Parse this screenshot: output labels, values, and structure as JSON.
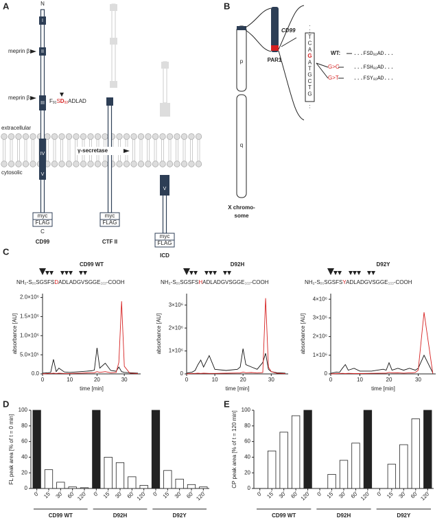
{
  "figure": {
    "panel_labels": [
      "A",
      "B",
      "C",
      "D",
      "E"
    ]
  },
  "diagram_a": {
    "n_term": "N",
    "domains": [
      "I",
      "II",
      "III",
      "IV",
      "V"
    ],
    "meprin": [
      "meprin β",
      "meprin β"
    ],
    "cleavage_seq": [
      "F",
      "91",
      "S",
      "D",
      "92",
      "ADLAD"
    ],
    "extracellular": "extracellular",
    "cytosolic": "cytosolic",
    "gamma": "γ-secretase",
    "tags": [
      "myc",
      "FLAG"
    ],
    "c_term": "C",
    "names": [
      "CD99",
      "CTF II",
      "ICD"
    ]
  },
  "diagram_b": {
    "arms": [
      "p",
      "q"
    ],
    "chromosome": [
      "X chromo-",
      "some"
    ],
    "gene": "CD99",
    "region": "PAR1",
    "bases": [
      ".",
      ":",
      "T",
      "C",
      "A",
      "G",
      "A",
      "T",
      "G",
      "C",
      "T",
      "G",
      ".",
      ":"
    ],
    "wt_label": "WT:",
    "wt_seq": [
      "...FSD",
      "92",
      "AD..."
    ],
    "mut1": "G>C",
    "mut1_seq": [
      "...FSH",
      "92",
      "AD..."
    ],
    "mut2": "G>T",
    "mut2_seq": [
      "...FSY",
      "92",
      "AD..."
    ]
  },
  "chart_data": [
    {
      "type": "line",
      "title": "CD99 WT",
      "sequence": [
        "NH₂-S",
        "86",
        "SGSFS",
        "D",
        "ADLADGVSGGE",
        "103",
        "-COOH"
      ],
      "xlabel": "time [min]",
      "ylabel": "absorbance [AU]",
      "x": [
        0,
        2,
        3,
        4,
        5,
        6,
        8,
        10,
        14,
        18,
        19,
        20,
        21,
        23,
        25,
        27,
        28,
        29,
        30,
        32,
        35
      ],
      "xlim": [
        0,
        36
      ],
      "xticks": [
        0,
        10,
        20,
        30
      ],
      "ylim": [
        0,
        2100000
      ],
      "yticks": [
        {
          "value": 0,
          "label": "0.0"
        },
        {
          "value": 500000,
          "label": "5.0×10⁵"
        },
        {
          "value": 1000000,
          "label": "1.0×10⁶"
        },
        {
          "value": 1500000,
          "label": "1.5×10⁶"
        },
        {
          "value": 2000000,
          "label": "2.0×10⁶"
        }
      ],
      "series": [
        {
          "color": "#111111",
          "values": [
            20000,
            30000,
            40000,
            380000,
            60000,
            150000,
            50000,
            40000,
            60000,
            80000,
            100000,
            680000,
            150000,
            280000,
            90000,
            70000,
            180000,
            60000,
            40000,
            30000,
            20000
          ]
        },
        {
          "color": "#d62020",
          "values": [
            0,
            10000,
            10000,
            20000,
            10000,
            20000,
            10000,
            10000,
            20000,
            30000,
            30000,
            60000,
            40000,
            60000,
            30000,
            40000,
            300000,
            1900000,
            200000,
            20000,
            10000
          ]
        }
      ]
    },
    {
      "type": "line",
      "title": "D92H",
      "sequence": [
        "NH₂-S",
        "86",
        "SGSFS",
        "H",
        "ADLADGVSGGE",
        "103",
        "-COOH"
      ],
      "xlabel": "time [min]",
      "ylabel": "absorbance [AU]",
      "x": [
        0,
        2,
        3,
        4,
        5,
        6,
        8,
        10,
        14,
        18,
        19,
        20,
        21,
        23,
        25,
        27,
        28,
        29,
        30,
        32,
        35
      ],
      "xlim": [
        0,
        36
      ],
      "xticks": [
        0,
        10,
        20,
        30
      ],
      "ylim": [
        0,
        3500000
      ],
      "yticks": [
        0,
        {
          "value": 1000000,
          "label": "1×10⁶"
        },
        {
          "value": 2000000,
          "label": "2×10⁶"
        },
        {
          "value": 3000000,
          "label": "3×10⁶"
        }
      ],
      "series": [
        {
          "color": "#111111",
          "values": [
            30000,
            80000,
            150000,
            400000,
            600000,
            300000,
            800000,
            200000,
            150000,
            200000,
            300000,
            1100000,
            400000,
            300000,
            200000,
            500000,
            900000,
            200000,
            100000,
            50000,
            30000
          ]
        },
        {
          "color": "#d62020",
          "values": [
            0,
            20000,
            20000,
            30000,
            20000,
            30000,
            20000,
            20000,
            30000,
            40000,
            40000,
            80000,
            50000,
            60000,
            40000,
            60000,
            3300000,
            300000,
            100000,
            30000,
            10000
          ]
        }
      ]
    },
    {
      "type": "line",
      "title": "D92Y",
      "sequence": [
        "NH₂-S",
        "86",
        "SGSFS",
        "Y",
        "ADLADGVSGGE",
        "103",
        "-COOH"
      ],
      "xlabel": "time [min]",
      "ylabel": "absorbance [AU]",
      "x": [
        0,
        2,
        3,
        4,
        5,
        6,
        8,
        10,
        14,
        18,
        19,
        20,
        21,
        23,
        25,
        27,
        28,
        29,
        30,
        32,
        35
      ],
      "xlim": [
        0,
        36
      ],
      "xticks": [
        0,
        10,
        20,
        30
      ],
      "ylim": [
        0,
        4300000
      ],
      "yticks": [
        0,
        {
          "value": 1000000,
          "label": "1×10⁶"
        },
        {
          "value": 2000000,
          "label": "2×10⁶"
        },
        {
          "value": 3000000,
          "label": "3×10⁶"
        },
        {
          "value": 4000000,
          "label": "4×10⁶"
        }
      ],
      "series": [
        {
          "color": "#111111",
          "values": [
            30000,
            100000,
            80000,
            300000,
            500000,
            200000,
            300000,
            150000,
            150000,
            250000,
            200000,
            600000,
            200000,
            300000,
            200000,
            300000,
            250000,
            200000,
            300000,
            1000000,
            50000
          ]
        },
        {
          "color": "#d62020",
          "values": [
            0,
            20000,
            20000,
            30000,
            20000,
            30000,
            20000,
            20000,
            30000,
            40000,
            40000,
            80000,
            50000,
            60000,
            40000,
            60000,
            60000,
            80000,
            200000,
            3300000,
            20000
          ]
        }
      ]
    },
    {
      "type": "bar",
      "ylabel": "FL peak area [% of t = 0 min]",
      "categories": [
        "0'",
        "15'",
        "30'",
        "60'",
        "120'"
      ],
      "category_colors": [
        "#222222",
        "#ffffff",
        "#ffffff",
        "#ffffff",
        "#ffffff"
      ],
      "ylim": [
        0,
        100
      ],
      "yticks": [
        0,
        20,
        40,
        60,
        80,
        100
      ],
      "groups": [
        {
          "name": "CD99 WT",
          "values": [
            100,
            24,
            8,
            2,
            1
          ]
        },
        {
          "name": "D92H",
          "values": [
            100,
            40,
            33,
            15,
            4
          ]
        },
        {
          "name": "D92Y",
          "values": [
            100,
            23,
            12,
            5,
            2
          ]
        }
      ]
    },
    {
      "type": "bar",
      "ylabel": "CP peak area [% of t = 120 min]",
      "categories": [
        "0'",
        "15'",
        "30'",
        "60'",
        "120'"
      ],
      "category_colors": [
        "#ffffff",
        "#ffffff",
        "#ffffff",
        "#ffffff",
        "#222222"
      ],
      "ylim": [
        0,
        100
      ],
      "yticks": [
        0,
        20,
        40,
        60,
        80,
        100
      ],
      "groups": [
        {
          "name": "CD99 WT",
          "values": [
            0,
            48,
            72,
            93,
            100
          ]
        },
        {
          "name": "D92H",
          "values": [
            0,
            18,
            36,
            58,
            100
          ]
        },
        {
          "name": "D92Y",
          "values": [
            0,
            31,
            56,
            89,
            100
          ]
        }
      ]
    }
  ]
}
